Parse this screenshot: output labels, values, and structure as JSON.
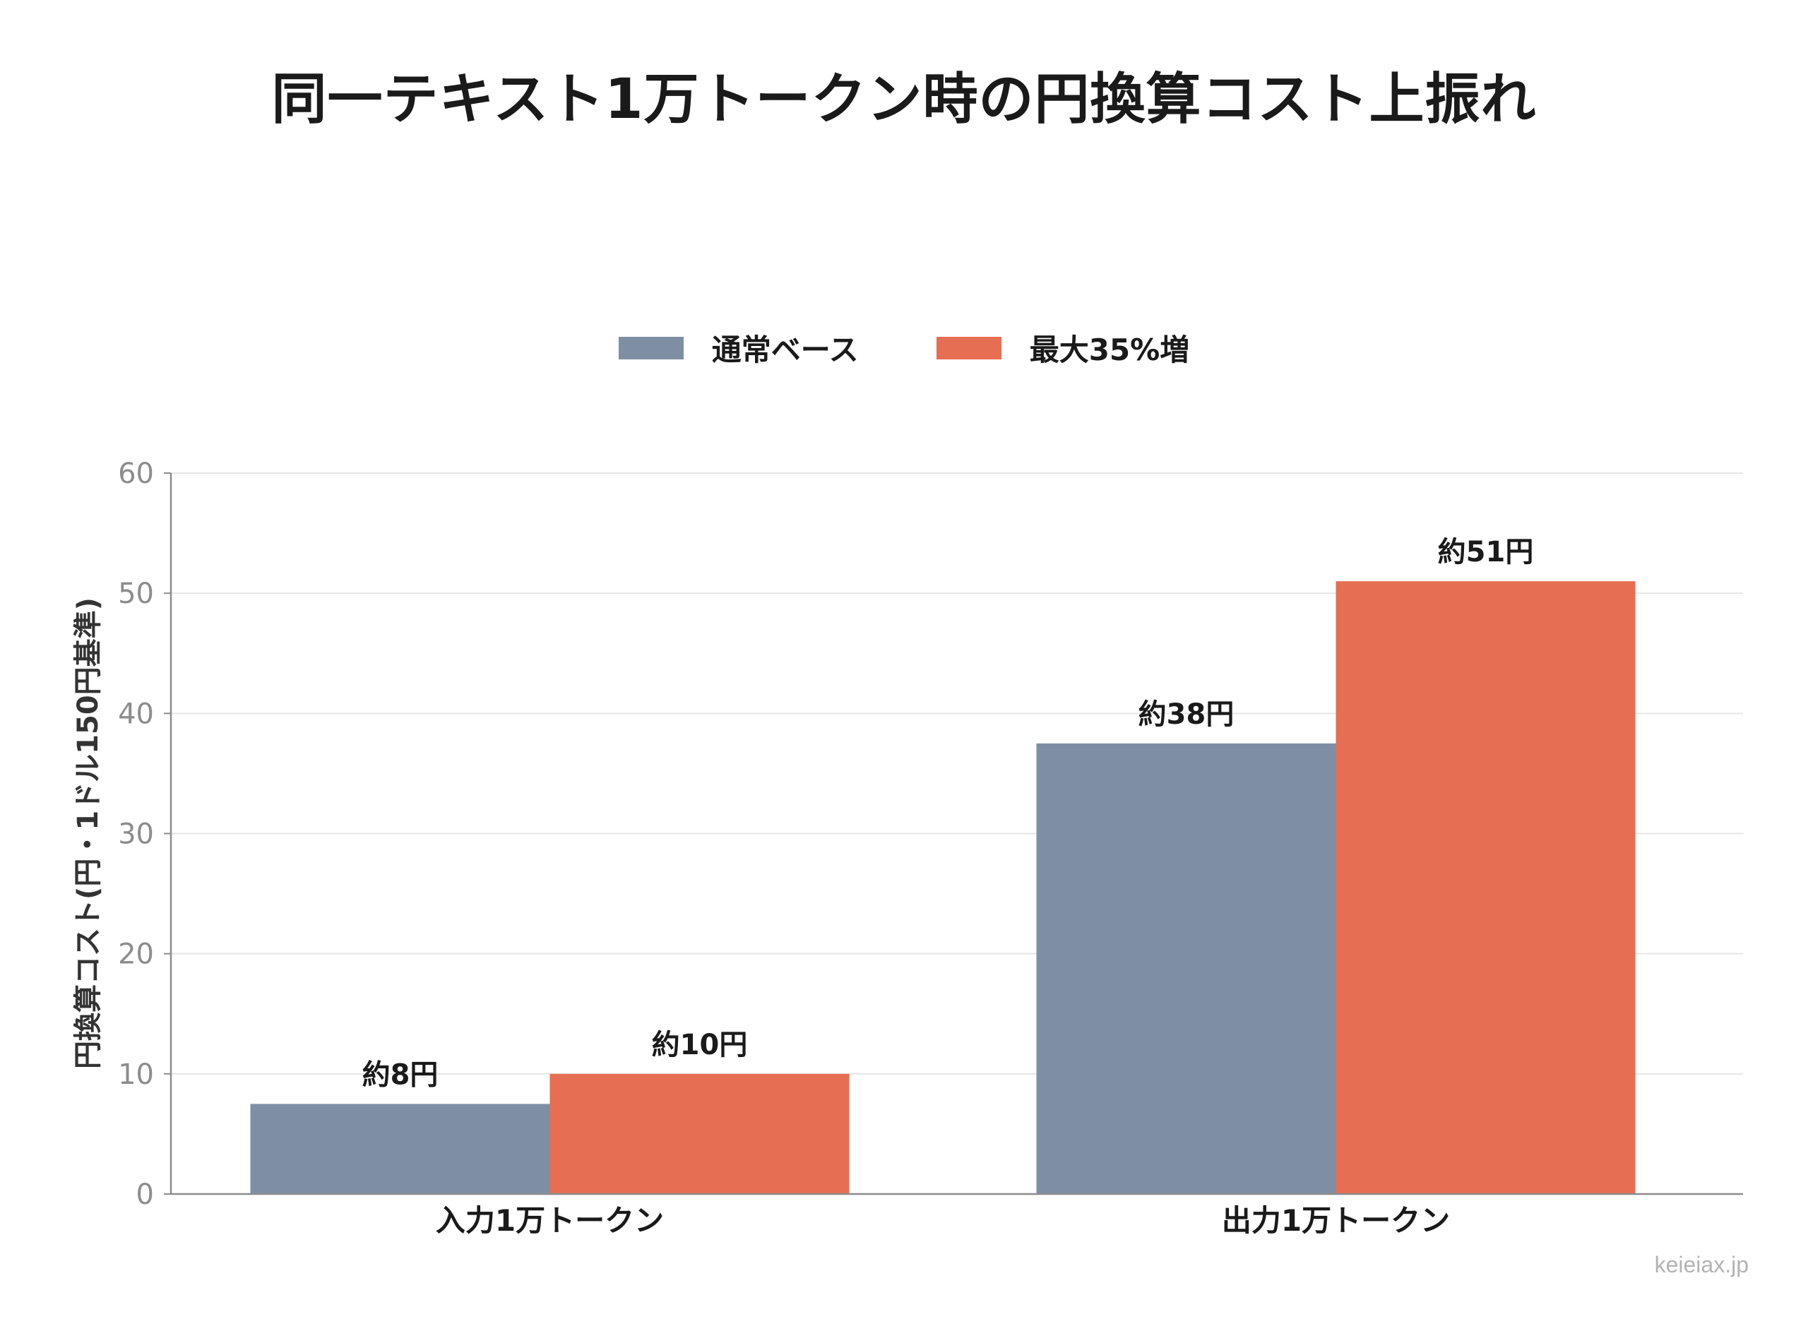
{
  "chart_data": {
    "type": "bar",
    "title": "同一テキスト1万トークン時の円換算コスト上振れ",
    "ylabel": "円換算コスト(円・1ドル150円基準)",
    "xlabel": "",
    "categories": [
      "入力1万トークン",
      "出力1万トークン"
    ],
    "series": [
      {
        "name": "通常ベース",
        "color": "#7f8fa3",
        "values": [
          7.5,
          37.5
        ],
        "labels": [
          "約8円",
          "約38円"
        ]
      },
      {
        "name": "最大35%増",
        "color": "#e66e52",
        "values": [
          10,
          51
        ],
        "labels": [
          "約10円",
          "約51円"
        ]
      }
    ],
    "ylim": [
      0,
      60
    ],
    "yticks": [
      0,
      10,
      20,
      30,
      40,
      50,
      60
    ],
    "grid": true,
    "legend_position": "top-center"
  },
  "watermark": "keieiax.jp"
}
